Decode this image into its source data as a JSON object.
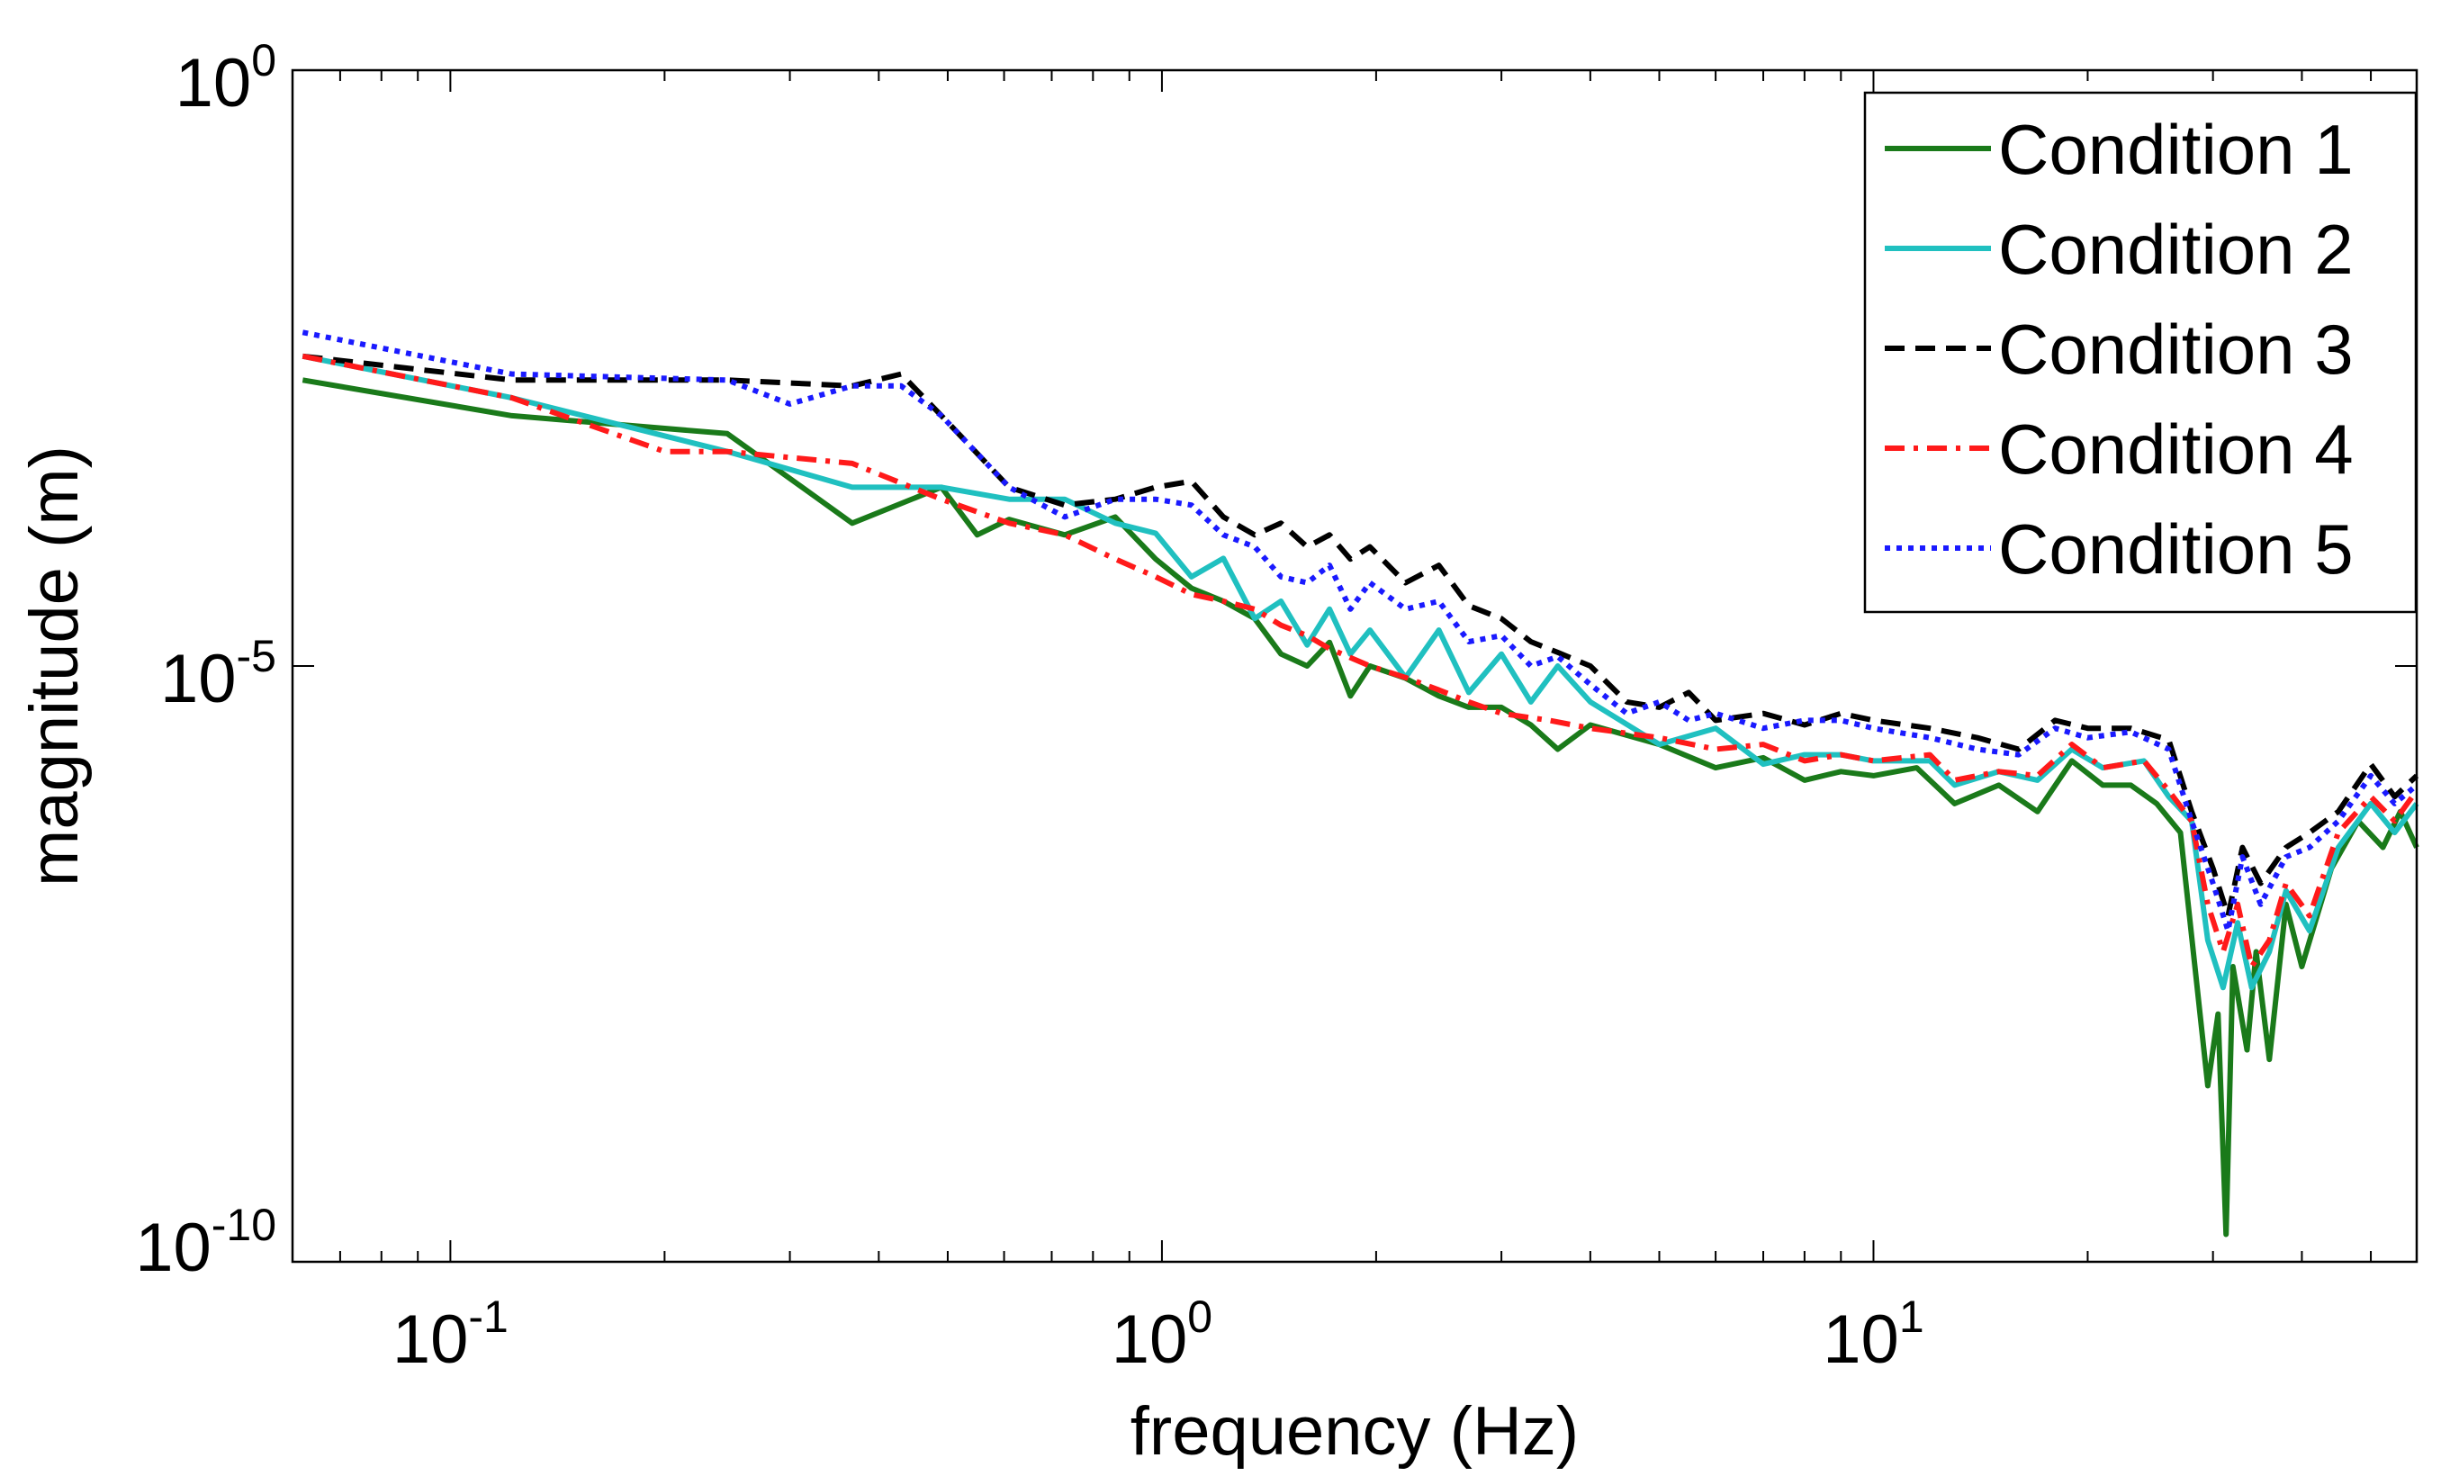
{
  "chart_data": {
    "type": "line",
    "title": "",
    "xlabel": "frequency (Hz)",
    "ylabel": "magnitude (m)",
    "xscale": "log",
    "yscale": "log",
    "xlim": [
      0.06,
      58
    ],
    "ylim": [
      1e-10,
      1
    ],
    "x_ticks": [
      {
        "value": 0.1,
        "base": "10",
        "exp": "-1"
      },
      {
        "value": 1,
        "base": "10",
        "exp": "0"
      },
      {
        "value": 10,
        "base": "10",
        "exp": "1"
      }
    ],
    "y_ticks": [
      {
        "value": 1,
        "base": "10",
        "exp": "0"
      },
      {
        "value": 1e-05,
        "base": "10",
        "exp": "-5"
      },
      {
        "value": 1e-10,
        "base": "10",
        "exp": "-10"
      }
    ],
    "legend_position": "top-right",
    "series": [
      {
        "name": "Condition 1",
        "color": "#1a7a1a",
        "dash": "solid",
        "points": [
          [
            0.062,
            0.00251
          ],
          [
            0.122,
            0.00126
          ],
          [
            0.245,
            0.000891
          ],
          [
            0.367,
            0.000158
          ],
          [
            0.49,
            0.000316
          ],
          [
            0.55,
            0.000126
          ],
          [
            0.61,
            0.00017
          ],
          [
            0.73,
            0.000126
          ],
          [
            0.86,
            0.000178
          ],
          [
            0.98,
            7.9e-05
          ],
          [
            1.1,
            4.5e-05
          ],
          [
            1.22,
            3.5e-05
          ],
          [
            1.35,
            2.5e-05
          ],
          [
            1.47,
            1.26e-05
          ],
          [
            1.6,
            1e-05
          ],
          [
            1.72,
            1.58e-05
          ],
          [
            1.84,
            5.6e-06
          ],
          [
            1.96,
            1e-05
          ],
          [
            2.2,
            7.9e-06
          ],
          [
            2.45,
            5.6e-06
          ],
          [
            2.7,
            4.5e-06
          ],
          [
            3.0,
            4.5e-06
          ],
          [
            3.3,
            3.2e-06
          ],
          [
            3.6,
            2e-06
          ],
          [
            4.0,
            3.2e-06
          ],
          [
            5.0,
            2.2e-06
          ],
          [
            6.0,
            1.4e-06
          ],
          [
            7.0,
            1.7e-06
          ],
          [
            8.0,
            1.1e-06
          ],
          [
            9.0,
            1.3e-06
          ],
          [
            10.0,
            1.2e-06
          ],
          [
            11.5,
            1.4e-06
          ],
          [
            13.0,
            7e-07
          ],
          [
            15.0,
            1e-06
          ],
          [
            17.0,
            6e-07
          ],
          [
            19.0,
            1.6e-06
          ],
          [
            21.0,
            1e-06
          ],
          [
            23.0,
            1e-06
          ],
          [
            25.0,
            7e-07
          ],
          [
            27.0,
            4e-07
          ],
          [
            29.5,
            3e-09
          ],
          [
            30.5,
            1.2e-08
          ],
          [
            31.3,
            1.7e-10
          ],
          [
            32.0,
            3e-08
          ],
          [
            33.5,
            6e-09
          ],
          [
            34.5,
            4e-08
          ],
          [
            36.0,
            5e-09
          ],
          [
            38.0,
            1e-07
          ],
          [
            40.0,
            3e-08
          ],
          [
            44.0,
            2e-07
          ],
          [
            48.0,
            5e-07
          ],
          [
            52.0,
            3e-07
          ],
          [
            55.0,
            6e-07
          ],
          [
            58.0,
            3e-07
          ]
        ]
      },
      {
        "name": "Condition 2",
        "color": "#20c0c0",
        "dash": "solid",
        "points": [
          [
            0.062,
            0.00398
          ],
          [
            0.122,
            0.00178
          ],
          [
            0.245,
            0.000631
          ],
          [
            0.367,
            0.000316
          ],
          [
            0.49,
            0.000316
          ],
          [
            0.61,
            0.000251
          ],
          [
            0.73,
            0.000251
          ],
          [
            0.86,
            0.000158
          ],
          [
            0.98,
            0.00013
          ],
          [
            1.1,
            5.6e-05
          ],
          [
            1.22,
            8e-05
          ],
          [
            1.35,
            2.5e-05
          ],
          [
            1.47,
            3.5e-05
          ],
          [
            1.6,
            1.5e-05
          ],
          [
            1.72,
            3e-05
          ],
          [
            1.84,
            1.26e-05
          ],
          [
            1.96,
            2e-05
          ],
          [
            2.2,
            8e-06
          ],
          [
            2.45,
            2e-05
          ],
          [
            2.7,
            6e-06
          ],
          [
            3.0,
            1.26e-05
          ],
          [
            3.3,
            5e-06
          ],
          [
            3.6,
            1e-05
          ],
          [
            4.0,
            5e-06
          ],
          [
            5.0,
            2.2e-06
          ],
          [
            6.0,
            3e-06
          ],
          [
            7.0,
            1.5e-06
          ],
          [
            8.0,
            1.8e-06
          ],
          [
            9.0,
            1.8e-06
          ],
          [
            10.0,
            1.6e-06
          ],
          [
            12.0,
            1.6e-06
          ],
          [
            13.0,
            1e-06
          ],
          [
            15.0,
            1.3e-06
          ],
          [
            17.0,
            1.1e-06
          ],
          [
            19.0,
            2e-06
          ],
          [
            21.0,
            1.4e-06
          ],
          [
            24.0,
            1.6e-06
          ],
          [
            26.0,
            8e-07
          ],
          [
            28.0,
            5e-07
          ],
          [
            29.5,
            5e-08
          ],
          [
            31.0,
            2e-08
          ],
          [
            32.5,
            7e-08
          ],
          [
            34.0,
            2e-08
          ],
          [
            36.0,
            4e-08
          ],
          [
            38.0,
            1.3e-07
          ],
          [
            41.0,
            6e-08
          ],
          [
            45.0,
            3e-07
          ],
          [
            50.0,
            7e-07
          ],
          [
            54.0,
            4e-07
          ],
          [
            58.0,
            7e-07
          ]
        ]
      },
      {
        "name": "Condition 3",
        "color": "#000000",
        "dash": "dashed",
        "points": [
          [
            0.062,
            0.00398
          ],
          [
            0.122,
            0.00251
          ],
          [
            0.245,
            0.00251
          ],
          [
            0.367,
            0.00224
          ],
          [
            0.43,
            0.00282
          ],
          [
            0.49,
            0.00126
          ],
          [
            0.61,
            0.000316
          ],
          [
            0.73,
            0.000224
          ],
          [
            0.86,
            0.000251
          ],
          [
            0.98,
            0.000316
          ],
          [
            1.1,
            0.000355
          ],
          [
            1.22,
            0.000178
          ],
          [
            1.35,
            0.000126
          ],
          [
            1.47,
            0.000158
          ],
          [
            1.6,
            0.0001
          ],
          [
            1.72,
            0.000126
          ],
          [
            1.84,
            7.9e-05
          ],
          [
            1.96,
            0.0001
          ],
          [
            2.2,
            5e-05
          ],
          [
            2.45,
            7e-05
          ],
          [
            2.7,
            3.2e-05
          ],
          [
            3.0,
            2.5e-05
          ],
          [
            3.3,
            1.6e-05
          ],
          [
            3.6,
            1.3e-05
          ],
          [
            4.0,
            1e-05
          ],
          [
            4.5,
            5e-06
          ],
          [
            5.0,
            4.5e-06
          ],
          [
            5.5,
            6e-06
          ],
          [
            6.0,
            3.5e-06
          ],
          [
            7.0,
            4e-06
          ],
          [
            8.0,
            3.2e-06
          ],
          [
            9.0,
            4e-06
          ],
          [
            10.0,
            3.5e-06
          ],
          [
            12.0,
            3e-06
          ],
          [
            14.0,
            2.5e-06
          ],
          [
            16.0,
            2e-06
          ],
          [
            18.0,
            3.5e-06
          ],
          [
            20.0,
            3e-06
          ],
          [
            23.0,
            3e-06
          ],
          [
            26.0,
            2.4e-06
          ],
          [
            28.0,
            6e-07
          ],
          [
            30.0,
            2e-07
          ],
          [
            31.5,
            8e-08
          ],
          [
            33.0,
            3e-07
          ],
          [
            35.0,
            1.5e-07
          ],
          [
            38.0,
            3e-07
          ],
          [
            41.0,
            4e-07
          ],
          [
            45.0,
            6e-07
          ],
          [
            50.0,
            1.5e-06
          ],
          [
            54.0,
            8e-07
          ],
          [
            58.0,
            1.2e-06
          ]
        ]
      },
      {
        "name": "Condition 4",
        "color": "#ff1a1a",
        "dash": "dashdot",
        "points": [
          [
            0.062,
            0.00398
          ],
          [
            0.122,
            0.00178
          ],
          [
            0.2,
            0.000631
          ],
          [
            0.245,
            0.000631
          ],
          [
            0.367,
            0.000501
          ],
          [
            0.49,
            0.000251
          ],
          [
            0.61,
            0.000158
          ],
          [
            0.73,
            0.000126
          ],
          [
            0.86,
            7.9e-05
          ],
          [
            0.98,
            5.6e-05
          ],
          [
            1.1,
            4e-05
          ],
          [
            1.22,
            3.5e-05
          ],
          [
            1.35,
            3e-05
          ],
          [
            1.47,
            2.2e-05
          ],
          [
            1.6,
            1.8e-05
          ],
          [
            1.72,
            1.4e-05
          ],
          [
            1.96,
            1e-05
          ],
          [
            2.2,
            8e-06
          ],
          [
            2.45,
            6.3e-06
          ],
          [
            2.7,
            5e-06
          ],
          [
            3.0,
            4e-06
          ],
          [
            3.5,
            3.5e-06
          ],
          [
            4.0,
            3e-06
          ],
          [
            5.0,
            2.5e-06
          ],
          [
            6.0,
            2e-06
          ],
          [
            7.0,
            2.2e-06
          ],
          [
            8.0,
            1.6e-06
          ],
          [
            9.0,
            1.8e-06
          ],
          [
            10.0,
            1.6e-06
          ],
          [
            12.0,
            1.8e-06
          ],
          [
            13.0,
            1.1e-06
          ],
          [
            15.0,
            1.3e-06
          ],
          [
            17.0,
            1.2e-06
          ],
          [
            19.0,
            2.2e-06
          ],
          [
            21.0,
            1.4e-06
          ],
          [
            24.0,
            1.6e-06
          ],
          [
            26.0,
            9e-07
          ],
          [
            28.0,
            5e-07
          ],
          [
            29.5,
            1e-07
          ],
          [
            31.0,
            4e-08
          ],
          [
            32.5,
            1e-07
          ],
          [
            34.0,
            3e-08
          ],
          [
            36.0,
            5e-08
          ],
          [
            38.0,
            1.5e-07
          ],
          [
            41.0,
            8e-08
          ],
          [
            45.0,
            4e-07
          ],
          [
            50.0,
            8e-07
          ],
          [
            54.0,
            5e-07
          ],
          [
            58.0,
            9e-07
          ]
        ]
      },
      {
        "name": "Condition 5",
        "color": "#1a1aff",
        "dash": "dotted",
        "points": [
          [
            0.062,
            0.00631
          ],
          [
            0.122,
            0.00282
          ],
          [
            0.245,
            0.00251
          ],
          [
            0.3,
            0.00158
          ],
          [
            0.367,
            0.00224
          ],
          [
            0.43,
            0.00224
          ],
          [
            0.49,
            0.00126
          ],
          [
            0.61,
            0.000316
          ],
          [
            0.73,
            0.000178
          ],
          [
            0.86,
            0.000251
          ],
          [
            0.98,
            0.000251
          ],
          [
            1.1,
            0.000224
          ],
          [
            1.22,
            0.000126
          ],
          [
            1.35,
            0.0001
          ],
          [
            1.47,
            5.6e-05
          ],
          [
            1.6,
            5e-05
          ],
          [
            1.72,
            7e-05
          ],
          [
            1.84,
            3e-05
          ],
          [
            1.96,
            5e-05
          ],
          [
            2.2,
            3e-05
          ],
          [
            2.45,
            3.5e-05
          ],
          [
            2.7,
            1.6e-05
          ],
          [
            3.0,
            1.8e-05
          ],
          [
            3.3,
            1e-05
          ],
          [
            3.6,
            1.2e-05
          ],
          [
            4.0,
            7e-06
          ],
          [
            4.5,
            4e-06
          ],
          [
            5.0,
            5e-06
          ],
          [
            5.5,
            3.5e-06
          ],
          [
            6.0,
            4e-06
          ],
          [
            7.0,
            3e-06
          ],
          [
            8.0,
            3.5e-06
          ],
          [
            9.0,
            3.5e-06
          ],
          [
            10.0,
            3e-06
          ],
          [
            12.0,
            2.5e-06
          ],
          [
            14.0,
            2e-06
          ],
          [
            16.0,
            1.8e-06
          ],
          [
            18.0,
            3e-06
          ],
          [
            20.0,
            2.5e-06
          ],
          [
            23.0,
            2.8e-06
          ],
          [
            26.0,
            2e-06
          ],
          [
            28.0,
            5e-07
          ],
          [
            30.0,
            1.5e-07
          ],
          [
            31.5,
            6e-08
          ],
          [
            33.0,
            2.5e-07
          ],
          [
            35.0,
            1e-07
          ],
          [
            38.0,
            2.5e-07
          ],
          [
            41.0,
            3e-07
          ],
          [
            45.0,
            5e-07
          ],
          [
            50.0,
            1.2e-06
          ],
          [
            54.0,
            7e-07
          ],
          [
            58.0,
            1e-06
          ]
        ]
      }
    ]
  }
}
